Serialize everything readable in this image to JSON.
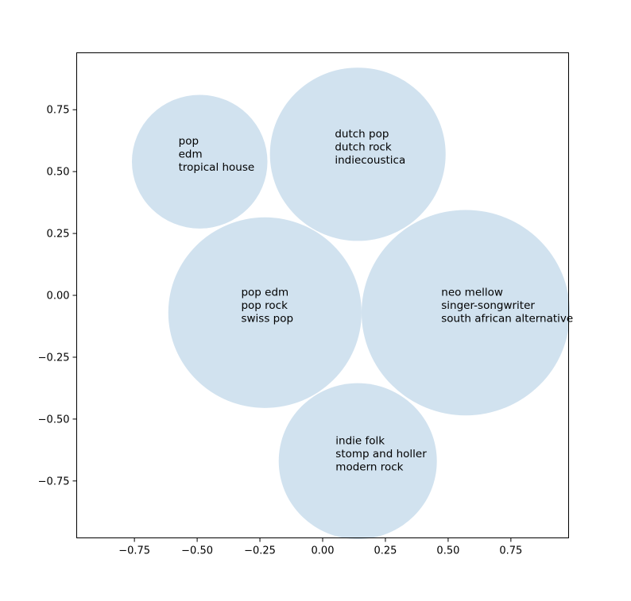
{
  "chart_data": {
    "type": "bubble",
    "title": "",
    "xlabel": "",
    "ylabel": "",
    "xlim": [
      -0.98,
      0.98
    ],
    "ylim": [
      -0.98,
      0.98
    ],
    "xticks": [
      -0.75,
      -0.5,
      -0.25,
      0.0,
      0.25,
      0.5,
      0.75
    ],
    "yticks": [
      -0.75,
      -0.5,
      -0.25,
      0.0,
      0.25,
      0.5,
      0.75
    ],
    "xtick_labels": [
      "−0.75",
      "−0.50",
      "−0.25",
      "0.00",
      "0.25",
      "0.50",
      "0.75"
    ],
    "ytick_labels": [
      "−0.75",
      "−0.50",
      "−0.25",
      "0.00",
      "0.25",
      "0.50",
      "0.75"
    ],
    "grid": false,
    "bubble_color": "#d1e2ef",
    "bubbles": [
      {
        "x": -0.49,
        "y": 0.54,
        "r": 0.27,
        "labels": [
          "pop",
          "edm",
          "tropical house"
        ]
      },
      {
        "x": 0.14,
        "y": 0.57,
        "r": 0.35,
        "labels": [
          "dutch pop",
          "dutch rock",
          "indiecoustica"
        ]
      },
      {
        "x": -0.23,
        "y": -0.07,
        "r": 0.385,
        "labels": [
          "pop edm",
          "pop rock",
          "swiss pop"
        ]
      },
      {
        "x": 0.57,
        "y": -0.07,
        "r": 0.415,
        "labels": [
          "neo mellow",
          "singer-songwriter",
          "south african alternative"
        ]
      },
      {
        "x": 0.14,
        "y": -0.67,
        "r": 0.315,
        "labels": [
          "indie folk",
          "stomp and holler",
          "modern rock"
        ]
      }
    ]
  }
}
